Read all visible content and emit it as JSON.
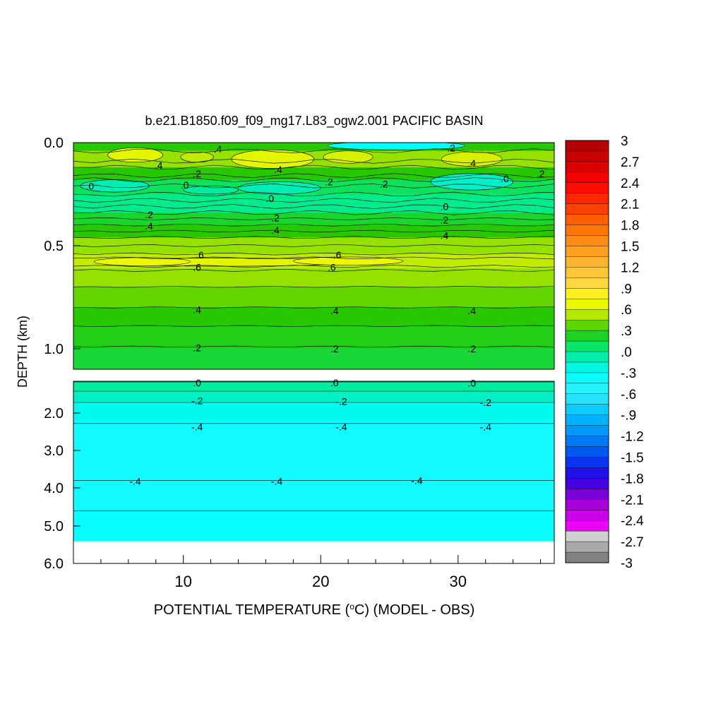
{
  "chart_data": {
    "type": "heatmap",
    "title": "b.e21.B1850.f09_f09_mg17.L83_ogw2.001 PACIFIC BASIN",
    "xlabel_prefix": "POTENTIAL TEMPERATURE (",
    "xlabel_degree": "o",
    "xlabel_suffix": "C) (MODEL - OBS)",
    "ylabel": "DEPTH (km)",
    "x_range": [
      2,
      37
    ],
    "x_ticks": [
      10,
      20,
      30
    ],
    "x_tick_labels": [
      "10",
      "20",
      "30"
    ],
    "upper_panel": {
      "depth_range": [
        0.0,
        1.1
      ],
      "y_ticks": [
        0.0,
        0.5,
        1.0
      ],
      "y_tick_labels": [
        "0.0",
        "0.5",
        "1.0"
      ]
    },
    "lower_panel": {
      "depth_range": [
        1.1,
        6.0
      ],
      "y_ticks": [
        2.0,
        3.0,
        4.0,
        5.0,
        6.0
      ],
      "y_tick_labels": [
        "2.0",
        "3.0",
        "4.0",
        "5.0",
        "6.0"
      ],
      "data_bottom_depth": 5.4
    },
    "colorbar": {
      "min": -3,
      "max": 3,
      "step": 0.15,
      "labels": [
        "3",
        "2.7",
        "2.4",
        "2.1",
        "1.8",
        "1.5",
        "1.2",
        ".9",
        ".6",
        ".3",
        ".0",
        "-.3",
        "-.6",
        "-.9",
        "-1.2",
        "-1.5",
        "-1.8",
        "-2.1",
        "-2.4",
        "-2.7",
        "-3"
      ]
    },
    "upper_bands": [
      {
        "depth": [
          0.0,
          0.04
        ],
        "value": 0.3
      },
      {
        "depth": [
          0.04,
          0.12
        ],
        "value": 0.45
      },
      {
        "depth": [
          0.12,
          0.18
        ],
        "value": 0.3
      },
      {
        "depth": [
          0.18,
          0.25
        ],
        "value": 0.1
      },
      {
        "depth": [
          0.25,
          0.34
        ],
        "value": 0.0
      },
      {
        "depth": [
          0.34,
          0.4
        ],
        "value": 0.2
      },
      {
        "depth": [
          0.4,
          0.46
        ],
        "value": 0.3
      },
      {
        "depth": [
          0.46,
          0.54
        ],
        "value": 0.45
      },
      {
        "depth": [
          0.54,
          0.61
        ],
        "value": 0.55
      },
      {
        "depth": [
          0.61,
          0.7
        ],
        "value": 0.45
      },
      {
        "depth": [
          0.7,
          0.8
        ],
        "value": 0.38
      },
      {
        "depth": [
          0.8,
          0.89
        ],
        "value": 0.3
      },
      {
        "depth": [
          0.89,
          1.0
        ],
        "value": 0.25
      },
      {
        "depth": [
          1.0,
          1.1
        ],
        "value": 0.18
      }
    ],
    "lower_bands": [
      {
        "depth": [
          1.1,
          1.4
        ],
        "value": -0.05
      },
      {
        "depth": [
          1.4,
          1.7
        ],
        "value": -0.15
      },
      {
        "depth": [
          1.7,
          2.2
        ],
        "value": -0.25
      },
      {
        "depth": [
          2.2,
          4.6
        ],
        "value": -0.4
      },
      {
        "depth": [
          4.6,
          5.4
        ],
        "value": -0.35
      }
    ],
    "warm_patches": [
      {
        "x": 6.5,
        "depth": 0.06,
        "rx": 2.0,
        "ry": 0.035,
        "value": 0.65
      },
      {
        "x": 11.0,
        "depth": 0.07,
        "rx": 1.2,
        "ry": 0.025,
        "value": 0.55
      },
      {
        "x": 16.5,
        "depth": 0.08,
        "rx": 3.0,
        "ry": 0.045,
        "value": 0.65
      },
      {
        "x": 22.0,
        "depth": 0.07,
        "rx": 1.8,
        "ry": 0.03,
        "value": 0.6
      },
      {
        "x": 31.0,
        "depth": 0.08,
        "rx": 2.2,
        "ry": 0.035,
        "value": 0.6
      },
      {
        "x": 13.0,
        "depth": 0.58,
        "rx": 9.0,
        "ry": 0.02,
        "value": 0.65
      },
      {
        "x": 22.0,
        "depth": 0.575,
        "rx": 4.0,
        "ry": 0.02,
        "value": 0.68
      },
      {
        "x": 7.0,
        "depth": 0.578,
        "rx": 3.5,
        "ry": 0.02,
        "value": 0.68
      }
    ],
    "cold_patches": [
      {
        "x": 25.5,
        "depth": 0.015,
        "rx": 5.0,
        "ry": 0.02,
        "value": -0.3
      },
      {
        "x": 5.0,
        "depth": 0.21,
        "rx": 2.5,
        "ry": 0.03,
        "value": -0.1
      },
      {
        "x": 17.0,
        "depth": 0.22,
        "rx": 3.0,
        "ry": 0.03,
        "value": -0.1
      },
      {
        "x": 31.0,
        "depth": 0.19,
        "rx": 3.0,
        "ry": 0.04,
        "value": -0.15
      },
      {
        "x": 12.0,
        "depth": 0.23,
        "rx": 2.0,
        "ry": 0.02,
        "value": -0.05
      }
    ],
    "upper_contours": [
      0.04,
      0.09,
      0.12,
      0.16,
      0.18,
      0.21,
      0.25,
      0.28,
      0.31,
      0.34,
      0.37,
      0.4,
      0.43,
      0.46,
      0.5,
      0.54,
      0.56,
      0.6,
      0.62,
      0.7,
      0.8,
      0.89,
      0.99
    ],
    "lower_contours": [
      1.12,
      1.38,
      1.7,
      2.28,
      3.8,
      4.6
    ],
    "upper_labels": [
      {
        "text": ".4",
        "x": 12.5,
        "depth": 0.03
      },
      {
        "text": ".2",
        "x": 29.5,
        "depth": 0.025
      },
      {
        "text": ".4",
        "x": 8.2,
        "depth": 0.11
      },
      {
        "text": ".4",
        "x": 16.9,
        "depth": 0.13
      },
      {
        "text": ".4",
        "x": 31.0,
        "depth": 0.1
      },
      {
        "text": ".2",
        "x": 11.0,
        "depth": 0.15
      },
      {
        "text": ".0",
        "x": 3.2,
        "depth": 0.21
      },
      {
        "text": ".0",
        "x": 10.1,
        "depth": 0.205
      },
      {
        "text": ".2",
        "x": 20.6,
        "depth": 0.19
      },
      {
        "text": ".2",
        "x": 24.6,
        "depth": 0.2
      },
      {
        "text": ".0",
        "x": 33.4,
        "depth": 0.175
      },
      {
        "text": ".2",
        "x": 36.0,
        "depth": 0.15
      },
      {
        "text": ".0",
        "x": 16.3,
        "depth": 0.27
      },
      {
        "text": ".0",
        "x": 29.0,
        "depth": 0.31
      },
      {
        "text": ".2",
        "x": 7.5,
        "depth": 0.35
      },
      {
        "text": ".2",
        "x": 16.7,
        "depth": 0.365
      },
      {
        "text": ".2",
        "x": 29.0,
        "depth": 0.375
      },
      {
        "text": ".4",
        "x": 7.5,
        "depth": 0.405
      },
      {
        "text": ".4",
        "x": 16.7,
        "depth": 0.425
      },
      {
        "text": ".4",
        "x": 29.0,
        "depth": 0.45
      },
      {
        "text": ".6",
        "x": 11.2,
        "depth": 0.545
      },
      {
        "text": ".6",
        "x": 21.2,
        "depth": 0.545
      },
      {
        "text": ".6",
        "x": 11.0,
        "depth": 0.605
      },
      {
        "text": ".6",
        "x": 20.8,
        "depth": 0.605
      },
      {
        "text": ".4",
        "x": 11.0,
        "depth": 0.81
      },
      {
        "text": ".4",
        "x": 21.0,
        "depth": 0.815
      },
      {
        "text": ".4",
        "x": 31.0,
        "depth": 0.815
      },
      {
        "text": ".2",
        "x": 11.0,
        "depth": 0.995
      },
      {
        "text": ".2",
        "x": 21.0,
        "depth": 1.0
      },
      {
        "text": ".2",
        "x": 31.0,
        "depth": 1.0
      }
    ],
    "lower_labels": [
      {
        "text": ".0",
        "x": 11.0,
        "depth": 1.14
      },
      {
        "text": ".0",
        "x": 21.0,
        "depth": 1.14
      },
      {
        "text": ".0",
        "x": 31.0,
        "depth": 1.15
      },
      {
        "text": "-.2",
        "x": 11.0,
        "depth": 1.65
      },
      {
        "text": "-.2",
        "x": 21.5,
        "depth": 1.67
      },
      {
        "text": "-.2",
        "x": 32.0,
        "depth": 1.7
      },
      {
        "text": "-.4",
        "x": 11.0,
        "depth": 2.37
      },
      {
        "text": "-.4",
        "x": 21.5,
        "depth": 2.37
      },
      {
        "text": "-.4",
        "x": 32.0,
        "depth": 2.37
      },
      {
        "text": "-.4",
        "x": 6.5,
        "depth": 3.82
      },
      {
        "text": "-.4",
        "x": 16.8,
        "depth": 3.82
      },
      {
        "text": "-.4",
        "x": 27.0,
        "depth": 3.8
      }
    ]
  }
}
